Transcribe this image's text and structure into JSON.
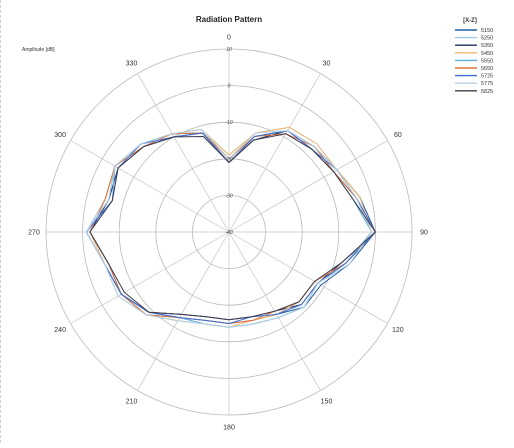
{
  "chart_data": {
    "type": "polar-line",
    "title": "Radiation Pattern",
    "ylabel": "Amplitude [dB]",
    "legend_title": "[X-Z]",
    "legend_position": "top-right",
    "r_range": [
      -40,
      10
    ],
    "r_ticks": [
      10,
      0,
      -10,
      -20,
      -30,
      -40
    ],
    "angle_ticks": [
      0,
      30,
      60,
      90,
      120,
      150,
      180,
      210,
      240,
      270,
      300,
      330
    ],
    "grid": true,
    "angles": [
      0,
      15,
      30,
      45,
      60,
      75,
      90,
      105,
      120,
      135,
      150,
      165,
      180,
      195,
      210,
      225,
      240,
      255,
      270,
      285,
      300,
      315,
      330,
      345
    ],
    "series": [
      {
        "name": "5150",
        "color": "#1f5fa8",
        "values": [
          -20,
          -13,
          -8,
          -7,
          -6,
          -3,
          0,
          -6,
          -11,
          -11,
          -14,
          -15,
          -15,
          -15,
          -13,
          -9,
          -6,
          -5,
          -1,
          -6,
          -4,
          -6,
          -9,
          -12
        ]
      },
      {
        "name": "5250",
        "color": "#9ec8e6",
        "values": [
          -19,
          -12,
          -7,
          -6,
          -6,
          -4,
          -1,
          -7,
          -12,
          -11,
          -13,
          -14,
          -14,
          -14,
          -12,
          -8,
          -5,
          -5,
          -1,
          -5,
          -4,
          -6,
          -9,
          -11
        ]
      },
      {
        "name": "5350",
        "color": "#1a2f63",
        "values": [
          -21,
          -14,
          -8,
          -8,
          -7,
          -4,
          0,
          -8,
          -12,
          -12,
          -15,
          -16,
          -16,
          -16,
          -14,
          -9,
          -6,
          -6,
          -2,
          -6,
          -5,
          -7,
          -10,
          -12
        ]
      },
      {
        "name": "5450",
        "color": "#f2b46d",
        "values": [
          -19,
          -12,
          -7,
          -6,
          -6,
          -3,
          -1,
          -7,
          -13,
          -13,
          -14,
          -15,
          -14,
          -14,
          -12,
          -8,
          -6,
          -5,
          -2,
          -5,
          -4,
          -6,
          -9,
          -11
        ]
      },
      {
        "name": "5550",
        "color": "#57aee0",
        "values": [
          -20,
          -13,
          -8,
          -7,
          -7,
          -5,
          -1,
          -7,
          -12,
          -11,
          -13,
          -14,
          -14,
          -14,
          -13,
          -8,
          -6,
          -5,
          -1,
          -7,
          -4,
          -6,
          -9,
          -12
        ]
      },
      {
        "name": "5650",
        "color": "#e2733a",
        "values": [
          -20,
          -13,
          -9,
          -7,
          -7,
          -4,
          0,
          -7,
          -13,
          -13,
          -15,
          -15,
          -15,
          -15,
          -13,
          -8,
          -6,
          -6,
          -2,
          -5,
          -4,
          -7,
          -9,
          -12
        ]
      },
      {
        "name": "5725",
        "color": "#3f6fd6",
        "values": [
          -21,
          -13,
          -8,
          -8,
          -6,
          -4,
          0,
          -7,
          -12,
          -12,
          -14,
          -16,
          -15,
          -15,
          -13,
          -9,
          -6,
          -5,
          -1,
          -7,
          -5,
          -6,
          -10,
          -12
        ]
      },
      {
        "name": "5775",
        "color": "#b4cfe2",
        "values": [
          -20,
          -12,
          -8,
          -7,
          -6,
          -4,
          -1,
          -6,
          -12,
          -11,
          -13,
          -14,
          -14,
          -14,
          -12,
          -8,
          -5,
          -5,
          -1,
          -6,
          -4,
          -6,
          -9,
          -11
        ]
      },
      {
        "name": "5825",
        "color": "#3d3d4f",
        "values": [
          -21,
          -14,
          -9,
          -8,
          -7,
          -5,
          0,
          -8,
          -13,
          -13,
          -15,
          -16,
          -16,
          -16,
          -14,
          -9,
          -7,
          -6,
          -2,
          -7,
          -5,
          -7,
          -10,
          -13
        ]
      }
    ]
  }
}
